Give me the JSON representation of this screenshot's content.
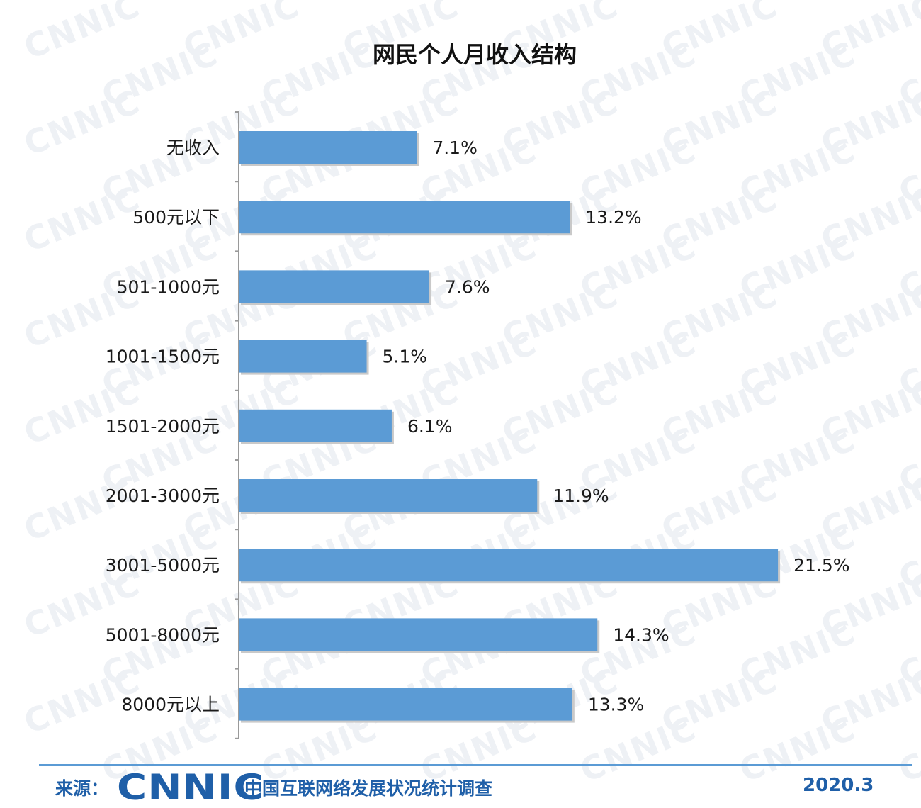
{
  "chart_data": {
    "type": "bar",
    "orientation": "horizontal",
    "title": "网民个人月收入结构",
    "categories": [
      "无收入",
      "500元以下",
      "501-1000元",
      "1001-1500元",
      "1501-2000元",
      "2001-3000元",
      "3001-5000元",
      "5001-8000元",
      "8000元以上"
    ],
    "values": [
      7.1,
      13.2,
      7.6,
      5.1,
      6.1,
      11.9,
      21.5,
      14.3,
      13.3
    ],
    "value_labels": [
      "7.1%",
      "13.2%",
      "7.6%",
      "5.1%",
      "6.1%",
      "11.9%",
      "21.5%",
      "14.3%",
      "13.3%"
    ],
    "unit": "%",
    "xlim": [
      0,
      22
    ],
    "grid": false,
    "legend": "none",
    "bar_color": "#5b9bd5"
  },
  "footer": {
    "source_label": "来源：",
    "brand": "CNNIC",
    "org_name": "中国互联网络发展状况统计调查",
    "date": "2020.3"
  },
  "watermark": "CNNIC"
}
